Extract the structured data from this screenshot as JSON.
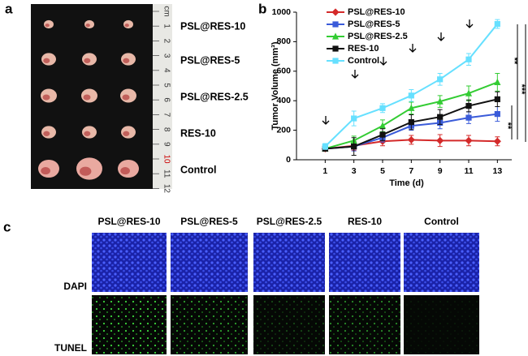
{
  "panel_a": {
    "letter": "a",
    "ruler_labels": [
      "cm",
      "1",
      "2",
      "3",
      "4",
      "5",
      "6",
      "7",
      "8",
      "9",
      "10",
      "11",
      "12"
    ],
    "labels": [
      "PSL@RES-10",
      "PSL@RES-5",
      "PSL@RES-2.5",
      "RES-10",
      "Control"
    ]
  },
  "chart_data": {
    "type": "line",
    "panel_label": "b",
    "x_label": "Time (d)",
    "y_label": "Tumor Volume (mm³)",
    "x": [
      1,
      3,
      5,
      7,
      9,
      11,
      13
    ],
    "xlim": [
      -1,
      14
    ],
    "xticks": [
      1,
      3,
      5,
      7,
      9,
      11,
      13
    ],
    "ylim": [
      0,
      1000
    ],
    "yticks": [
      0,
      200,
      400,
      600,
      800,
      1000
    ],
    "legend": "upper left",
    "annotations": [
      "**",
      "***",
      "**"
    ],
    "series": [
      {
        "name": "PSL@RES-10",
        "color": "#d42a2a",
        "marker": "diamond",
        "values": [
          75,
          95,
          125,
          135,
          130,
          130,
          125
        ],
        "errors": [
          15,
          30,
          30,
          30,
          40,
          35,
          30
        ]
      },
      {
        "name": "PSL@RES-5",
        "color": "#3a5bd9",
        "marker": "square",
        "values": [
          75,
          90,
          150,
          230,
          250,
          285,
          310
        ],
        "errors": [
          10,
          30,
          30,
          30,
          40,
          40,
          50
        ]
      },
      {
        "name": "PSL@RES-2.5",
        "color": "#33cc33",
        "marker": "triangle",
        "values": [
          75,
          130,
          230,
          350,
          395,
          450,
          525
        ],
        "errors": [
          10,
          30,
          40,
          40,
          40,
          50,
          60
        ]
      },
      {
        "name": "RES-10",
        "color": "#111111",
        "marker": "square",
        "values": [
          75,
          90,
          170,
          255,
          290,
          365,
          410
        ],
        "errors": [
          15,
          60,
          40,
          50,
          50,
          40,
          50
        ]
      },
      {
        "name": "Control",
        "color": "#66e0ff",
        "marker": "square",
        "values": [
          90,
          280,
          350,
          435,
          545,
          680,
          920
        ],
        "errors": [
          20,
          50,
          30,
          40,
          40,
          40,
          30
        ]
      }
    ]
  },
  "panel_c": {
    "letter": "c",
    "columns": [
      "PSL@RES-10",
      "PSL@RES-5",
      "PSL@RES-2.5",
      "RES-10",
      "Control"
    ],
    "rows": [
      "DAPI",
      "TUNEL"
    ]
  }
}
